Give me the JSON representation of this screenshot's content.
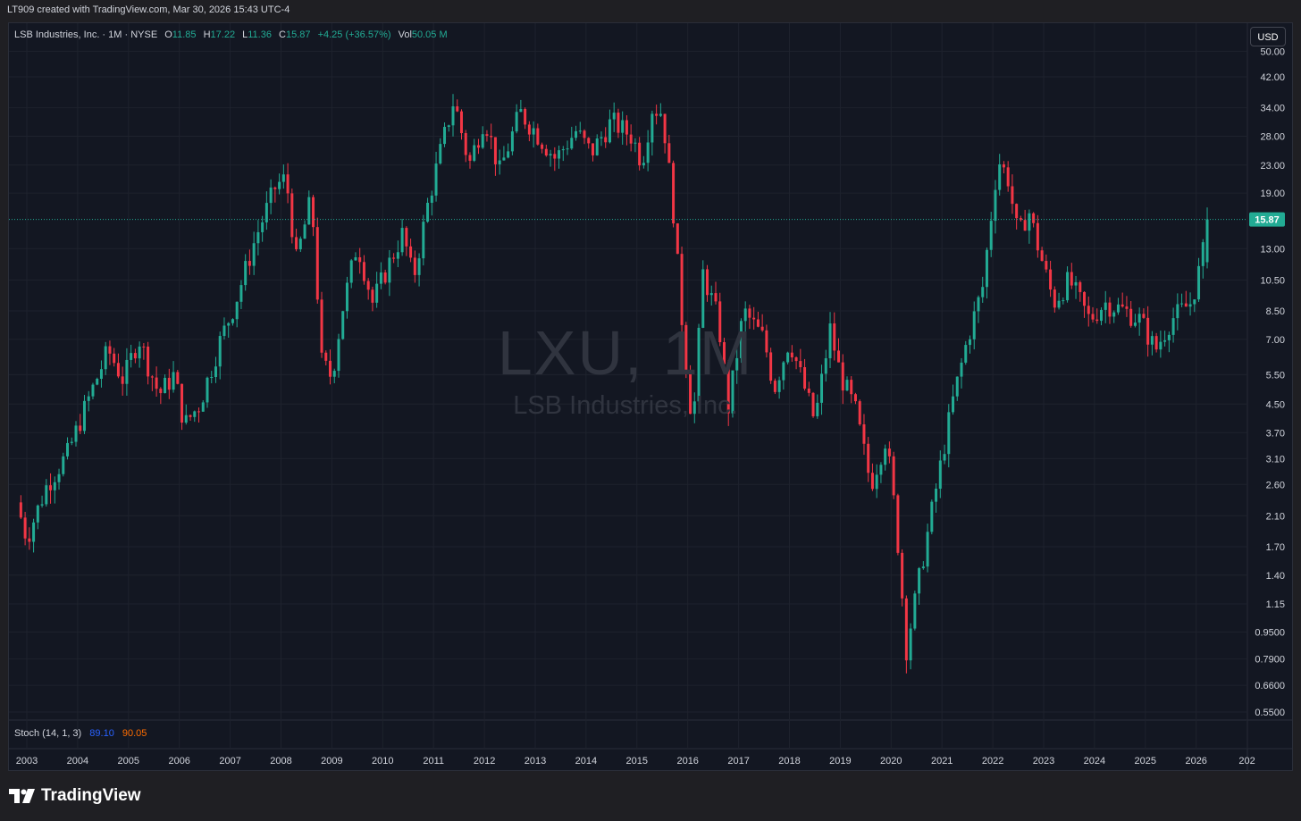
{
  "caption": "LT909 created with TradingView.com, Mar 30, 2026 15:43 UTC-4",
  "legend": {
    "title": "LSB Industries, Inc. · 1M · NYSE",
    "o_label": "O",
    "o_value": "11.85",
    "h_label": "H",
    "h_value": "17.22",
    "l_label": "L",
    "l_value": "11.36",
    "c_label": "C",
    "c_value": "15.87",
    "change": "+4.25 (+36.57%)",
    "vol_label": "Vol",
    "vol_value": "50.05 M"
  },
  "currency": "USD",
  "watermark": {
    "ticker": "LXU, 1M",
    "name": "LSB Industries, Inc."
  },
  "stoch": {
    "label": "Stoch (14, 1, 3)",
    "k": "89.10",
    "d": "90.05"
  },
  "brand": "TradingView",
  "colors": {
    "up": "#22ab94",
    "down": "#f23645",
    "background": "#131722",
    "grid": "#1e222d",
    "last_price": "#22ab94"
  },
  "chart_data": {
    "type": "candlestick",
    "scale": "log",
    "last_price": 15.87,
    "last_price_label": "15.87",
    "y_ticks": [
      "0.5500",
      "0.6600",
      "0.7900",
      "0.9500",
      "1.15",
      "1.40",
      "1.70",
      "2.10",
      "2.60",
      "3.10",
      "3.70",
      "4.50",
      "5.50",
      "7.00",
      "8.50",
      "10.50",
      "13.00",
      "19.00",
      "23.00",
      "28.00",
      "34.00",
      "42.00",
      "50.00"
    ],
    "x_ticks": [
      "2003",
      "2004",
      "2005",
      "2006",
      "2007",
      "2008",
      "2009",
      "2010",
      "2011",
      "2012",
      "2013",
      "2014",
      "2015",
      "2016",
      "2017",
      "2018",
      "2019",
      "2020",
      "2021",
      "2022",
      "2023",
      "2024",
      "2025",
      "2026",
      "202"
    ],
    "x_start_year": 2003,
    "points": [
      {
        "t": 2002.8,
        "p": 2.3
      },
      {
        "t": 2003.0,
        "p": 1.8
      },
      {
        "t": 2003.4,
        "p": 2.6
      },
      {
        "t": 2003.8,
        "p": 3.2
      },
      {
        "t": 2004.2,
        "p": 4.6
      },
      {
        "t": 2004.6,
        "p": 6.5
      },
      {
        "t": 2004.9,
        "p": 5.3
      },
      {
        "t": 2005.2,
        "p": 7.1
      },
      {
        "t": 2005.4,
        "p": 5.8
      },
      {
        "t": 2005.6,
        "p": 4.8
      },
      {
        "t": 2005.9,
        "p": 5.5
      },
      {
        "t": 2006.1,
        "p": 3.9
      },
      {
        "t": 2006.4,
        "p": 4.5
      },
      {
        "t": 2006.8,
        "p": 6.9
      },
      {
        "t": 2007.1,
        "p": 9.0
      },
      {
        "t": 2007.5,
        "p": 14.0
      },
      {
        "t": 2007.9,
        "p": 20.0
      },
      {
        "t": 2008.1,
        "p": 21.0
      },
      {
        "t": 2008.3,
        "p": 12.0
      },
      {
        "t": 2008.6,
        "p": 18.5
      },
      {
        "t": 2008.8,
        "p": 6.0
      },
      {
        "t": 2009.0,
        "p": 5.4
      },
      {
        "t": 2009.2,
        "p": 8.5
      },
      {
        "t": 2009.5,
        "p": 13.5
      },
      {
        "t": 2009.8,
        "p": 9.0
      },
      {
        "t": 2010.1,
        "p": 11.5
      },
      {
        "t": 2010.4,
        "p": 14.5
      },
      {
        "t": 2010.6,
        "p": 10.5
      },
      {
        "t": 2010.9,
        "p": 18.0
      },
      {
        "t": 2011.1,
        "p": 24.0
      },
      {
        "t": 2011.4,
        "p": 36.0
      },
      {
        "t": 2011.7,
        "p": 23.0
      },
      {
        "t": 2012.0,
        "p": 32.0
      },
      {
        "t": 2012.3,
        "p": 22.0
      },
      {
        "t": 2012.7,
        "p": 33.0
      },
      {
        "t": 2013.0,
        "p": 29.0
      },
      {
        "t": 2013.4,
        "p": 24.0
      },
      {
        "t": 2013.8,
        "p": 29.0
      },
      {
        "t": 2014.1,
        "p": 25.0
      },
      {
        "t": 2014.5,
        "p": 31.0
      },
      {
        "t": 2014.9,
        "p": 28.0
      },
      {
        "t": 2015.1,
        "p": 23.5
      },
      {
        "t": 2015.3,
        "p": 34.0
      },
      {
        "t": 2015.5,
        "p": 33.0
      },
      {
        "t": 2015.7,
        "p": 18.0
      },
      {
        "t": 2015.9,
        "p": 7.5
      },
      {
        "t": 2016.1,
        "p": 3.8
      },
      {
        "t": 2016.3,
        "p": 11.0
      },
      {
        "t": 2016.6,
        "p": 8.0
      },
      {
        "t": 2016.8,
        "p": 4.4
      },
      {
        "t": 2017.1,
        "p": 8.5
      },
      {
        "t": 2017.5,
        "p": 7.0
      },
      {
        "t": 2017.7,
        "p": 5.0
      },
      {
        "t": 2018.0,
        "p": 7.0
      },
      {
        "t": 2018.3,
        "p": 5.0
      },
      {
        "t": 2018.5,
        "p": 4.0
      },
      {
        "t": 2018.8,
        "p": 7.5
      },
      {
        "t": 2019.0,
        "p": 5.5
      },
      {
        "t": 2019.3,
        "p": 4.3
      },
      {
        "t": 2019.6,
        "p": 2.6
      },
      {
        "t": 2019.9,
        "p": 3.6
      },
      {
        "t": 2020.1,
        "p": 2.0
      },
      {
        "t": 2020.3,
        "p": 0.85
      },
      {
        "t": 2020.6,
        "p": 1.5
      },
      {
        "t": 2020.9,
        "p": 2.6
      },
      {
        "t": 2021.2,
        "p": 4.5
      },
      {
        "t": 2021.5,
        "p": 7.0
      },
      {
        "t": 2021.8,
        "p": 10.0
      },
      {
        "t": 2022.1,
        "p": 24.0
      },
      {
        "t": 2022.3,
        "p": 21.0
      },
      {
        "t": 2022.5,
        "p": 14.0
      },
      {
        "t": 2022.7,
        "p": 17.0
      },
      {
        "t": 2022.9,
        "p": 13.0
      },
      {
        "t": 2023.2,
        "p": 9.0
      },
      {
        "t": 2023.5,
        "p": 10.5
      },
      {
        "t": 2023.9,
        "p": 8.0
      },
      {
        "t": 2024.2,
        "p": 9.0
      },
      {
        "t": 2024.6,
        "p": 8.5
      },
      {
        "t": 2024.9,
        "p": 8.0
      },
      {
        "t": 2025.2,
        "p": 6.5
      },
      {
        "t": 2025.5,
        "p": 8.0
      },
      {
        "t": 2025.9,
        "p": 9.0
      },
      {
        "t": 2026.1,
        "p": 11.85
      },
      {
        "t": 2026.25,
        "p": 15.87
      }
    ]
  }
}
